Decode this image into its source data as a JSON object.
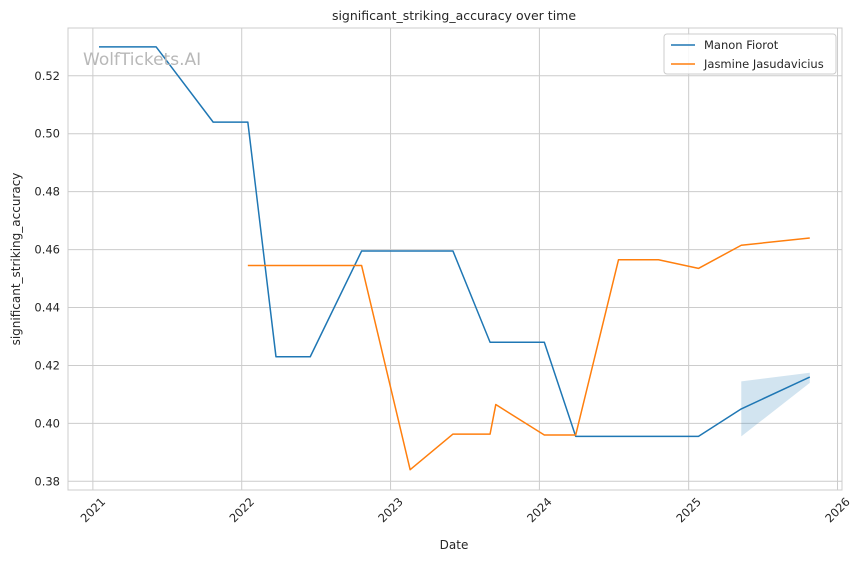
{
  "chart_data": {
    "type": "line",
    "title": "significant_striking_accuracy over time",
    "xlabel": "Date",
    "ylabel": "significant_striking_accuracy",
    "watermark": "WolfTickets.AI",
    "xlim": [
      "2020-11-01",
      "2026-01-12"
    ],
    "ylim": [
      0.377,
      0.5365
    ],
    "x_ticks": [
      "2021",
      "2022",
      "2023",
      "2024",
      "2025",
      "2026"
    ],
    "y_ticks": [
      "0.38",
      "0.40",
      "0.42",
      "0.44",
      "0.46",
      "0.48",
      "0.50",
      "0.52"
    ],
    "grid": true,
    "legend_position": "top-right",
    "series": [
      {
        "name": "Manon Fiorot",
        "color": "#1f77b4",
        "x": [
          "2021-01-16",
          "2021-06-05",
          "2021-10-23",
          "2022-01-16",
          "2022-03-26",
          "2022-06-18",
          "2022-10-22",
          "2023-06-03",
          "2023-09-02",
          "2024-01-13",
          "2024-03-30",
          "2024-07-13",
          "2024-10-19",
          "2025-01-25",
          "2025-05-10",
          "2025-10-25"
        ],
        "values": [
          0.53,
          0.53,
          0.504,
          0.504,
          0.423,
          0.423,
          0.4595,
          0.4595,
          0.428,
          0.428,
          0.3955,
          0.3955,
          0.3955,
          0.3955,
          0.405,
          0.416
        ],
        "band": {
          "x": [
            "2025-05-10",
            "2025-10-25"
          ],
          "lower": [
            0.3955,
            0.414
          ],
          "upper": [
            0.4145,
            0.4175
          ]
        }
      },
      {
        "name": "Jasmine Jasudavicius",
        "color": "#ff7f0e",
        "x": [
          "2022-01-16",
          "2022-10-22",
          "2023-02-18",
          "2023-06-03",
          "2023-09-02",
          "2023-09-16",
          "2024-01-13",
          "2024-03-30",
          "2024-07-13",
          "2024-10-19",
          "2025-01-25",
          "2025-05-10",
          "2025-10-25"
        ],
        "values": [
          0.4545,
          0.4545,
          0.384,
          0.3963,
          0.3963,
          0.4065,
          0.396,
          0.396,
          0.4565,
          0.4565,
          0.4535,
          0.4615,
          0.464
        ]
      }
    ]
  }
}
